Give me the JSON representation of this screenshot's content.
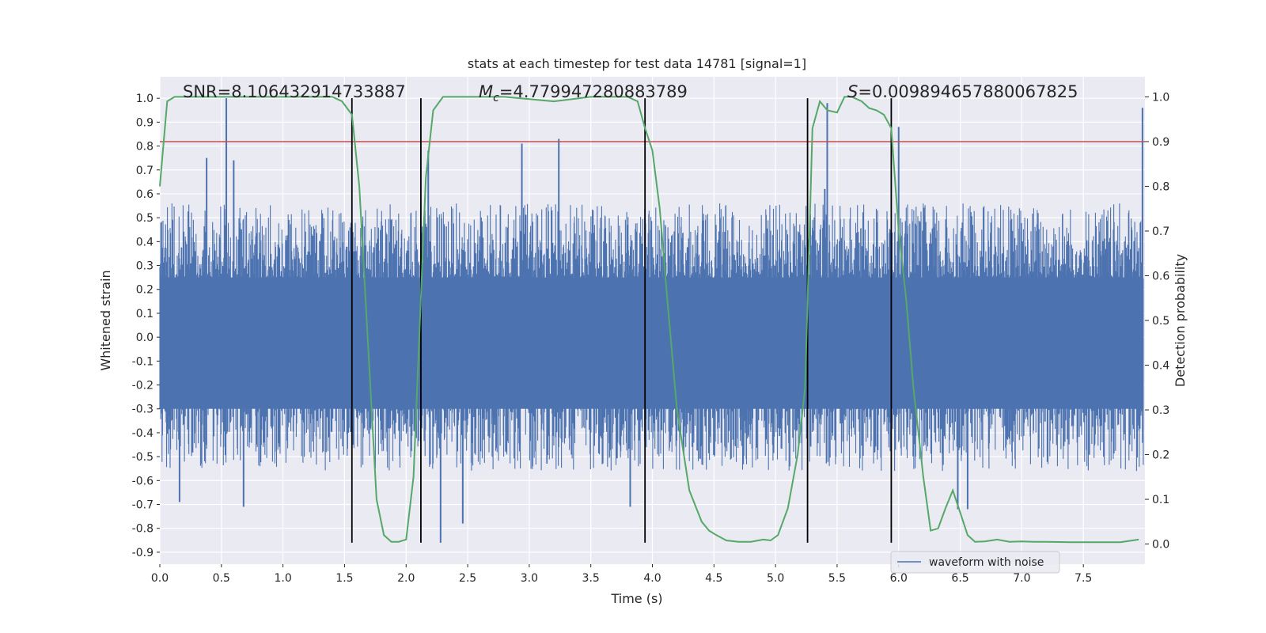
{
  "chart_data": {
    "type": "line",
    "title": "stats at each timestep for test data 14781 [signal=1]",
    "xlabel": "Time (s)",
    "ylabel": "Whitened strain",
    "y2label": "Detection probability",
    "xlim": [
      0.0,
      8.0
    ],
    "ylim": [
      -0.95,
      1.09
    ],
    "y2lim": [
      -0.045,
      1.045
    ],
    "grid": true,
    "legend": {
      "entries": [
        "waveform with noise"
      ],
      "placement": "lower-right"
    },
    "x_ticks": [
      "0.0",
      "0.5",
      "1.0",
      "1.5",
      "2.0",
      "2.5",
      "3.0",
      "3.5",
      "4.0",
      "4.5",
      "5.0",
      "5.5",
      "6.0",
      "6.5",
      "7.0",
      "7.5"
    ],
    "y_ticks": [
      "1.0",
      "0.9",
      "0.8",
      "0.7",
      "0.6",
      "0.5",
      "0.4",
      "0.3",
      "0.2",
      "0.1",
      "0.0",
      "-0.1",
      "-0.2",
      "-0.3",
      "-0.4",
      "-0.5",
      "-0.6",
      "-0.7",
      "-0.8",
      "-0.9"
    ],
    "y2_ticks": [
      "1.0",
      "0.9",
      "0.8",
      "0.7",
      "0.6",
      "0.5",
      "0.4",
      "0.3",
      "0.2",
      "0.1",
      "0.0"
    ],
    "annotations": {
      "snr": "SNR=8.106432914733887",
      "mc_symbol": "M",
      "mc_sub": "c",
      "mc_value": "=4.779947280883789",
      "s_symbol": "S",
      "s_value": "=0.009894657880067825"
    },
    "threshold_y2": 0.9,
    "boundaries_x": [
      1.56,
      2.12,
      3.94,
      5.26,
      5.94
    ],
    "waveform_envelope": {
      "name": "waveform with noise",
      "typical_amplitude": 0.35,
      "spikes": [
        {
          "x": 0.54,
          "y": 1.0
        },
        {
          "x": 0.38,
          "y": 0.75
        },
        {
          "x": 0.6,
          "y": 0.74
        },
        {
          "x": 2.18,
          "y": 0.78
        },
        {
          "x": 2.94,
          "y": 0.81
        },
        {
          "x": 3.24,
          "y": 0.83
        },
        {
          "x": 5.42,
          "y": 0.98
        },
        {
          "x": 5.4,
          "y": 0.62
        },
        {
          "x": 6.0,
          "y": 0.88
        },
        {
          "x": 7.98,
          "y": 0.96
        },
        {
          "x": 0.16,
          "y": -0.69
        },
        {
          "x": 0.68,
          "y": -0.71
        },
        {
          "x": 2.28,
          "y": -0.86
        },
        {
          "x": 2.46,
          "y": -0.78
        },
        {
          "x": 3.82,
          "y": -0.71
        },
        {
          "x": 6.48,
          "y": -0.72
        },
        {
          "x": 6.56,
          "y": -0.72
        }
      ]
    },
    "detection_probability": {
      "x": [
        0.0,
        0.06,
        0.12,
        0.2,
        0.4,
        0.6,
        0.8,
        1.0,
        1.2,
        1.4,
        1.48,
        1.56,
        1.62,
        1.7,
        1.76,
        1.82,
        1.88,
        1.94,
        2.0,
        2.06,
        2.12,
        2.16,
        2.22,
        2.3,
        2.5,
        2.8,
        3.0,
        3.2,
        3.5,
        3.8,
        3.88,
        3.94,
        4.0,
        4.06,
        4.12,
        4.2,
        4.3,
        4.4,
        4.46,
        4.52,
        4.6,
        4.7,
        4.8,
        4.9,
        4.96,
        5.02,
        5.1,
        5.18,
        5.24,
        5.3,
        5.36,
        5.42,
        5.5,
        5.56,
        5.62,
        5.7,
        5.76,
        5.82,
        5.88,
        5.94,
        6.0,
        6.06,
        6.12,
        6.2,
        6.26,
        6.32,
        6.38,
        6.44,
        6.5,
        6.56,
        6.62,
        6.7,
        6.8,
        6.9,
        7.0,
        7.1,
        7.2,
        7.4,
        7.6,
        7.8,
        7.95
      ],
      "y": [
        0.8,
        0.99,
        1.0,
        1.0,
        1.0,
        1.0,
        1.0,
        1.0,
        1.0,
        1.0,
        0.99,
        0.96,
        0.8,
        0.4,
        0.1,
        0.02,
        0.005,
        0.005,
        0.01,
        0.15,
        0.55,
        0.82,
        0.97,
        1.0,
        1.0,
        1.0,
        0.995,
        0.99,
        1.0,
        1.0,
        0.99,
        0.93,
        0.88,
        0.75,
        0.55,
        0.3,
        0.12,
        0.05,
        0.03,
        0.02,
        0.008,
        0.005,
        0.005,
        0.01,
        0.008,
        0.02,
        0.08,
        0.2,
        0.35,
        0.93,
        0.99,
        0.97,
        0.965,
        1.0,
        1.0,
        0.99,
        0.975,
        0.97,
        0.96,
        0.93,
        0.7,
        0.55,
        0.35,
        0.15,
        0.03,
        0.035,
        0.08,
        0.12,
        0.07,
        0.02,
        0.005,
        0.006,
        0.01,
        0.005,
        0.006,
        0.005,
        0.005,
        0.004,
        0.004,
        0.004,
        0.01
      ]
    }
  }
}
